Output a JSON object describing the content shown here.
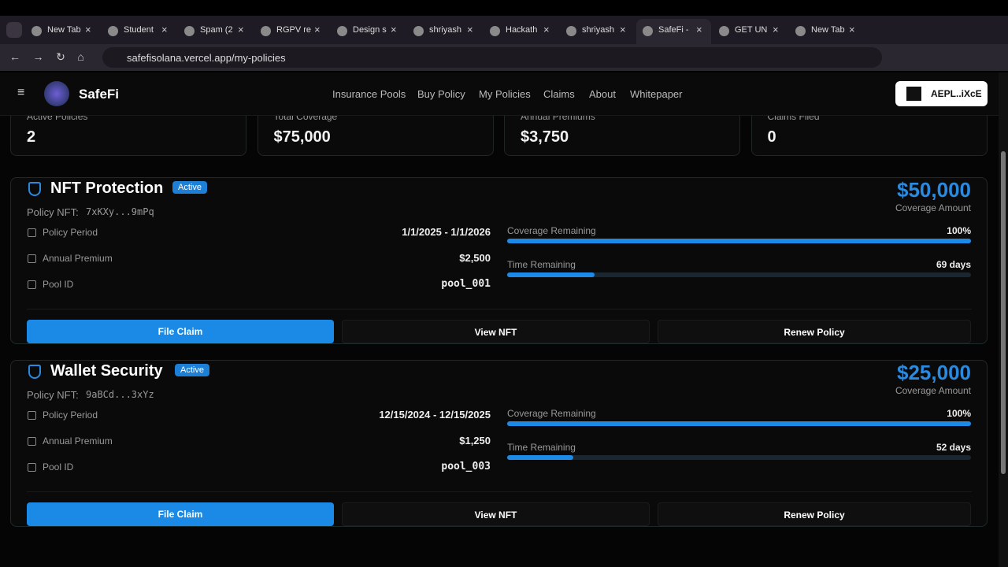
{
  "browser": {
    "tabs": [
      "New Tab",
      "Student",
      "Spam (2",
      "RGPV re",
      "Design s",
      "shriyash",
      "Hackath",
      "shriyash",
      "SafeFi -",
      "GET UN",
      "New Tab"
    ],
    "url": "safefisolana.vercel.app/my-policies"
  },
  "header": {
    "brand": "SafeFi",
    "nav": [
      "Insurance Pools",
      "Buy Policy",
      "My Policies",
      "Claims",
      "About",
      "Whitepaper"
    ],
    "wallet": "AEPL..iXcE"
  },
  "stats": [
    {
      "label": "Active Policies",
      "value": "2"
    },
    {
      "label": "Total Coverage",
      "value": "$75,000"
    },
    {
      "label": "Annual Premiums",
      "value": "$3,750"
    },
    {
      "label": "Claims Filed",
      "value": "0"
    }
  ],
  "policies": [
    {
      "name": "NFT Protection",
      "status": "Active",
      "nft_label": "Policy NFT:",
      "nft": "7xKXy...9mPq",
      "amount": "$50,000",
      "amount_label": "Coverage Amount",
      "details": [
        {
          "label": "Policy Period",
          "value": "1/1/2025 - 1/1/2026"
        },
        {
          "label": "Annual Premium",
          "value": "$2,500"
        },
        {
          "label": "Pool ID",
          "value": "pool_001"
        }
      ],
      "coverage": {
        "label": "Coverage Remaining",
        "value": 100,
        "value_label": "100%"
      },
      "time": {
        "label": "Time Remaining",
        "value": 69,
        "value_label": "69 days"
      },
      "actions": [
        "File Claim",
        "View NFT",
        "Renew Policy"
      ]
    },
    {
      "name": "Wallet Security",
      "status": "Active",
      "nft_label": "Policy NFT:",
      "nft": "9aBCd...3xYz",
      "amount": "$25,000",
      "amount_label": "Coverage Amount",
      "details": [
        {
          "label": "Policy Period",
          "value": "12/15/2024 - 12/15/2025"
        },
        {
          "label": "Annual Premium",
          "value": "$1,250"
        },
        {
          "label": "Pool ID",
          "value": "pool_003"
        }
      ],
      "coverage": {
        "label": "Coverage Remaining",
        "value": 100,
        "value_label": "100%"
      },
      "time": {
        "label": "Time Remaining",
        "value": 52,
        "value_label": "52 days"
      },
      "actions": [
        "File Claim",
        "View NFT",
        "Renew Policy"
      ]
    }
  ]
}
